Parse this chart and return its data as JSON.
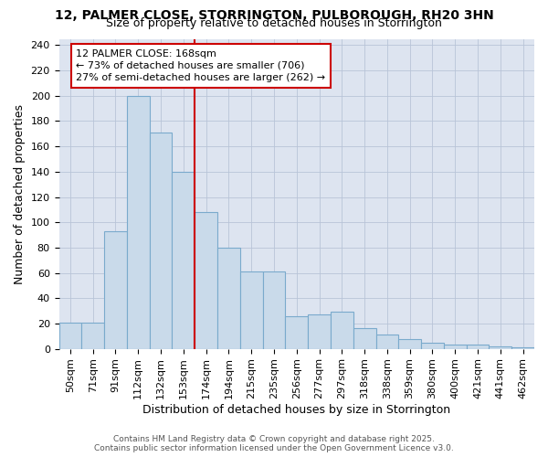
{
  "title_line1": "12, PALMER CLOSE, STORRINGTON, PULBOROUGH, RH20 3HN",
  "title_line2": "Size of property relative to detached houses in Storrington",
  "xlabel": "Distribution of detached houses by size in Storrington",
  "ylabel": "Number of detached properties",
  "categories": [
    "50sqm",
    "71sqm",
    "91sqm",
    "112sqm",
    "132sqm",
    "153sqm",
    "174sqm",
    "194sqm",
    "215sqm",
    "235sqm",
    "256sqm",
    "277sqm",
    "297sqm",
    "318sqm",
    "338sqm",
    "359sqm",
    "380sqm",
    "400sqm",
    "421sqm",
    "441sqm",
    "462sqm"
  ],
  "values": [
    21,
    21,
    93,
    200,
    171,
    140,
    108,
    80,
    61,
    61,
    26,
    27,
    29,
    16,
    11,
    8,
    5,
    3,
    3,
    2,
    1
  ],
  "bar_color": "#c9daea",
  "bar_edge_color": "#7aaacc",
  "vline_color": "#cc0000",
  "annotation_line1": "12 PALMER CLOSE: 168sqm",
  "annotation_line2": "← 73% of detached houses are smaller (706)",
  "annotation_line3": "27% of semi-detached houses are larger (262) →",
  "annotation_box_color": "#cc0000",
  "ylim": [
    0,
    245
  ],
  "yticks": [
    0,
    20,
    40,
    60,
    80,
    100,
    120,
    140,
    160,
    180,
    200,
    220,
    240
  ],
  "grid_color": "#b8c4d8",
  "bg_color": "#dde4f0",
  "footer_line1": "Contains HM Land Registry data © Crown copyright and database right 2025.",
  "footer_line2": "Contains public sector information licensed under the Open Government Licence v3.0.",
  "title_fontsize": 10,
  "subtitle_fontsize": 9,
  "tick_fontsize": 8,
  "xlabel_fontsize": 9,
  "ylabel_fontsize": 9
}
